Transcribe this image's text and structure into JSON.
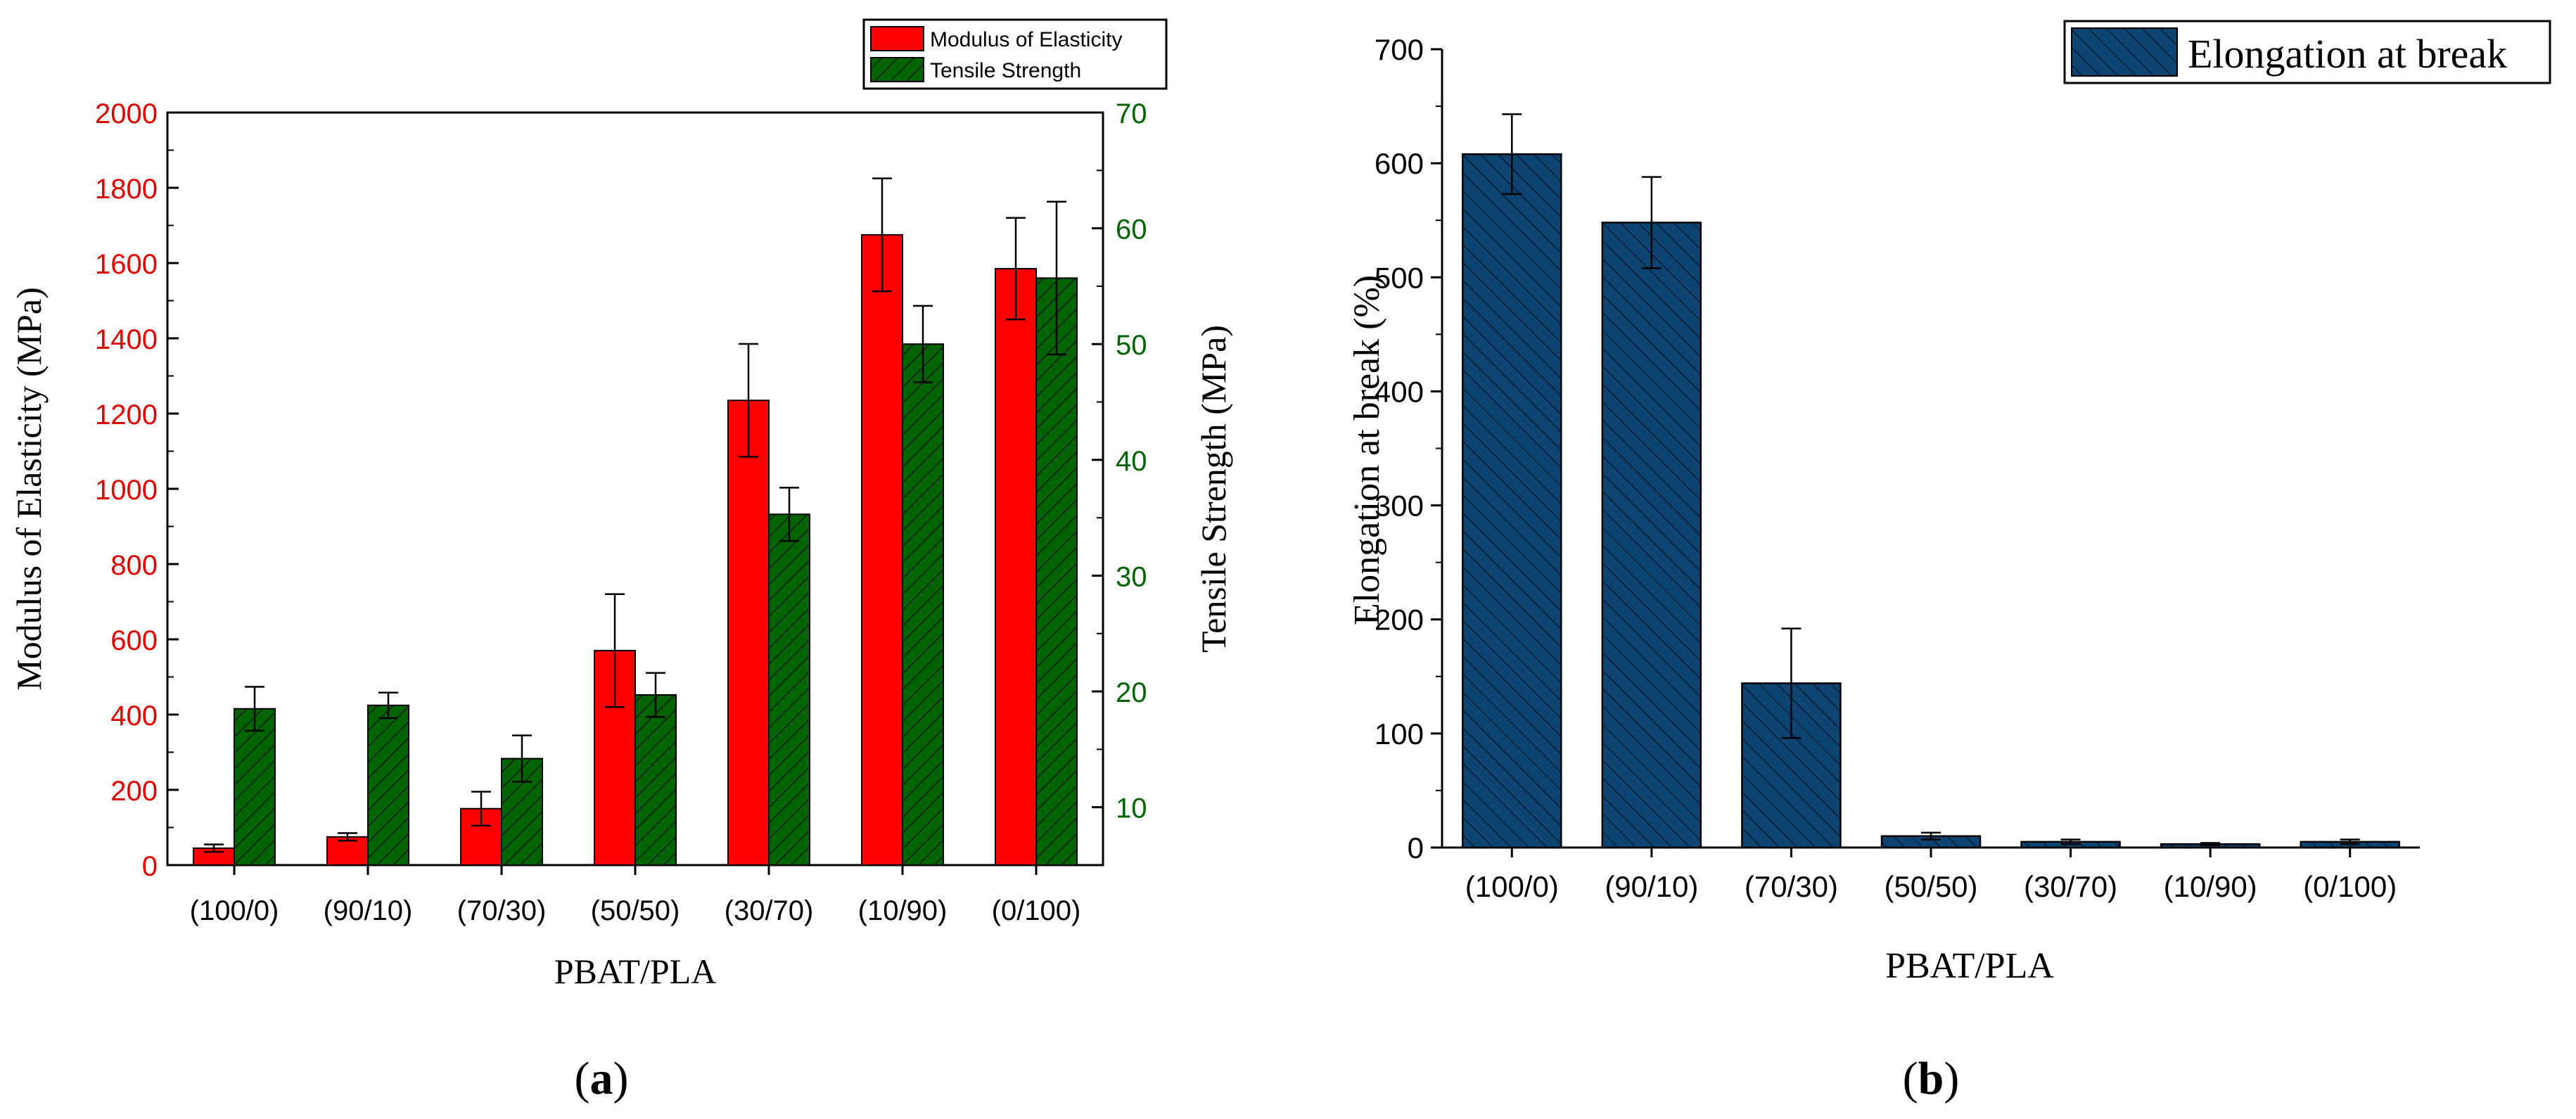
{
  "chart_data": [
    {
      "type": "bar",
      "panel_label": "a",
      "xlabel": "PBAT/PLA",
      "categories": [
        "(100/0)",
        "(90/10)",
        "(70/30)",
        "(50/50)",
        "(30/70)",
        "(10/90)",
        "(0/100)"
      ],
      "ylabel_left": "Modulus of Elasticity (MPa)",
      "ylabel_right": "Tensile Strength (MPa)",
      "ylim_left": [
        0,
        2000
      ],
      "yticks_left": [
        "0",
        "200",
        "400",
        "600",
        "800",
        "1000",
        "1200",
        "1400",
        "1600",
        "1800",
        "2000"
      ],
      "ylim_right": [
        5,
        70
      ],
      "yticks_right": [
        "10",
        "20",
        "30",
        "40",
        "50",
        "60",
        "70"
      ],
      "series": [
        {
          "name": "Modulus of Elasticity",
          "axis": "left",
          "color": "#ff0000",
          "values": [
            45,
            75,
            150,
            570,
            1235,
            1675,
            1585
          ],
          "errors": [
            10,
            10,
            45,
            150,
            150,
            150,
            135
          ]
        },
        {
          "name": "Tensile Strength",
          "axis": "right",
          "color": "#006400",
          "values": [
            18.5,
            18.8,
            14.2,
            19.7,
            35.3,
            50.0,
            55.7
          ],
          "errors": [
            1.9,
            1.1,
            2.0,
            1.9,
            2.3,
            3.3,
            6.6
          ]
        }
      ]
    },
    {
      "type": "bar",
      "panel_label": "b",
      "xlabel": "PBAT/PLA",
      "ylabel": "Elongation at break (%)",
      "categories": [
        "(100/0)",
        "(90/10)",
        "(70/30)",
        "(50/50)",
        "(30/70)",
        "(10/90)",
        "(0/100)"
      ],
      "ylim": [
        0,
        700
      ],
      "yticks": [
        "0",
        "100",
        "200",
        "300",
        "400",
        "500",
        "600",
        "700"
      ],
      "series": [
        {
          "name": "Elongation at break",
          "color": "#0e4472",
          "values": [
            608,
            548,
            144,
            10,
            5,
            3,
            5
          ],
          "errors": [
            35,
            40,
            48,
            3,
            2,
            1,
            2
          ]
        }
      ]
    }
  ]
}
